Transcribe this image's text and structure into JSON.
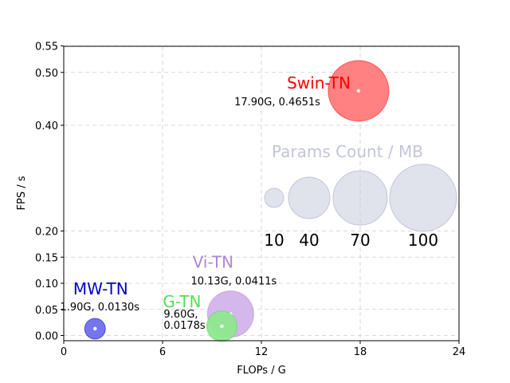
{
  "chart_data": {
    "type": "scatter",
    "title": "",
    "xlabel": "FLOPs / G",
    "ylabel": "FPS / s",
    "xlim": [
      0,
      24
    ],
    "ylim": [
      -0.01,
      0.55
    ],
    "xticks": [
      0,
      6,
      12,
      18,
      24
    ],
    "yticks": [
      0.0,
      0.05,
      0.1,
      0.15,
      0.2,
      0.4,
      0.5,
      0.55
    ],
    "ytick_labels": [
      "0.00",
      "0.05",
      "0.10",
      "0.15",
      "0.20",
      "0.40",
      "0.50",
      "0.55"
    ],
    "grid": true,
    "points": [
      {
        "name": "Swin-TN",
        "info": "17.90G, 0.4651s",
        "info_lines": [],
        "x": 17.9,
        "y": 0.4651,
        "color": "#ff0000",
        "fill": "#ff7a7a"
      },
      {
        "name": "Vi-TN",
        "info": "10.13G, 0.0411s",
        "info_lines": [],
        "x": 10.13,
        "y": 0.0411,
        "color": "#b085d8",
        "fill": "#d2b3ea"
      },
      {
        "name": "G-TN",
        "info": "",
        "info_lines": [
          "9.60G,",
          "0.0178s"
        ],
        "x": 9.6,
        "y": 0.0178,
        "color": "#55dd55",
        "fill": "#8ee88e"
      },
      {
        "name": "MW-TN",
        "info": "1.90G, 0.0130s",
        "info_lines": [],
        "x": 1.9,
        "y": 0.013,
        "color": "#0000cc",
        "fill": "#6e6ef0"
      }
    ],
    "legend": {
      "title": "Params Count / MB",
      "color": "#c2c5da",
      "entries": [
        "10",
        "40",
        "70",
        "100"
      ],
      "placement": "right"
    }
  }
}
